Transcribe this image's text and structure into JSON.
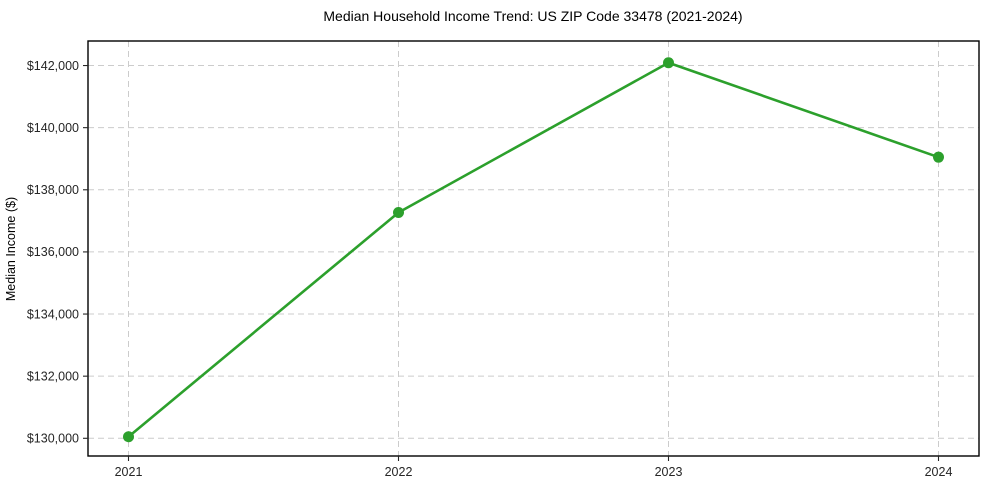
{
  "chart_data": {
    "type": "line",
    "title": "Median Household Income Trend: US ZIP Code 33478 (2021-2024)",
    "xlabel": "",
    "ylabel": "Median Income ($)",
    "x": [
      2021,
      2022,
      2023,
      2024
    ],
    "values": [
      130050,
      137270,
      142090,
      139050
    ],
    "xticks": [
      {
        "value": 2021,
        "label": "2021"
      },
      {
        "value": 2022,
        "label": "2022"
      },
      {
        "value": 2023,
        "label": "2023"
      },
      {
        "value": 2024,
        "label": "2024"
      }
    ],
    "yticks": [
      {
        "value": 130000,
        "label": "$130,000"
      },
      {
        "value": 132000,
        "label": "$132,000"
      },
      {
        "value": 134000,
        "label": "$134,000"
      },
      {
        "value": 136000,
        "label": "$136,000"
      },
      {
        "value": 138000,
        "label": "$138,000"
      },
      {
        "value": 140000,
        "label": "$140,000"
      },
      {
        "value": 142000,
        "label": "$142,000"
      }
    ],
    "xlim": [
      2020.85,
      2024.15
    ],
    "ylim": [
      129430,
      142790
    ],
    "grid": true,
    "legend": false,
    "line_color": "#2ca02c",
    "marker": "circle",
    "line_width": 2.6,
    "marker_radius": 5.5
  },
  "colors": {
    "background": "#ffffff",
    "grid": "#cccccc",
    "axis": "#000000",
    "tick_text": "#262626"
  }
}
